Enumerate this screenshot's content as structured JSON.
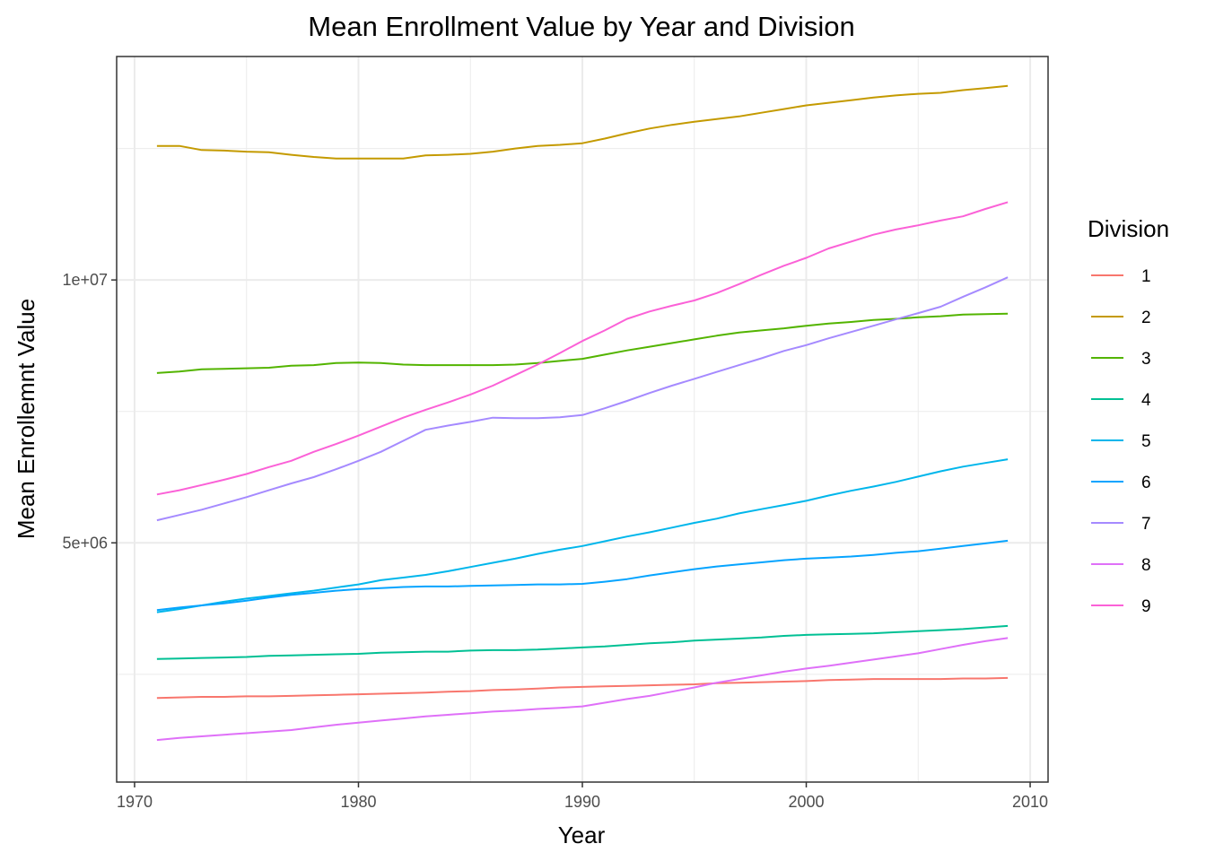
{
  "chart_data": {
    "type": "line",
    "title": "Mean Enrollment Value by Year and Division",
    "xlabel": "Year",
    "ylabel": "Mean Enrollemnt Value",
    "xlim": [
      1969.2,
      2010.8
    ],
    "ylim": [
      450000,
      14250000
    ],
    "x_ticks": [
      1970,
      1980,
      1990,
      2000,
      2010
    ],
    "x_tick_labels": [
      "1970",
      "1980",
      "1990",
      "2000",
      "2010"
    ],
    "y_ticks": [
      5000000,
      10000000
    ],
    "y_tick_labels": [
      "5e+06",
      "1e+07"
    ],
    "y_minor_ticks": [
      2500000,
      7500000,
      12500000
    ],
    "x_minor_ticks": [
      1975,
      1985,
      1995,
      2005
    ],
    "grid": true,
    "legend": {
      "title": "Division",
      "placement": "right"
    },
    "x": [
      1971,
      1972,
      1973,
      1974,
      1975,
      1976,
      1977,
      1978,
      1979,
      1980,
      1981,
      1982,
      1983,
      1984,
      1985,
      1986,
      1987,
      1988,
      1989,
      1990,
      1991,
      1992,
      1993,
      1994,
      1995,
      1996,
      1997,
      1998,
      1999,
      2000,
      2001,
      2002,
      2003,
      2004,
      2005,
      2006,
      2007,
      2008,
      2009
    ],
    "series": [
      {
        "name": "1",
        "color": "#F8766D",
        "values": [
          2050000,
          2060000,
          2070000,
          2070000,
          2080000,
          2080000,
          2090000,
          2100000,
          2110000,
          2120000,
          2130000,
          2140000,
          2150000,
          2170000,
          2180000,
          2200000,
          2210000,
          2230000,
          2250000,
          2260000,
          2270000,
          2280000,
          2290000,
          2300000,
          2310000,
          2330000,
          2340000,
          2350000,
          2360000,
          2370000,
          2390000,
          2400000,
          2410000,
          2410000,
          2410000,
          2410000,
          2420000,
          2420000,
          2430000
        ]
      },
      {
        "name": "2",
        "color": "#C49A00",
        "values": [
          12550000,
          12550000,
          12470000,
          12460000,
          12440000,
          12430000,
          12380000,
          12340000,
          12310000,
          12310000,
          12310000,
          12310000,
          12370000,
          12380000,
          12400000,
          12440000,
          12500000,
          12550000,
          12570000,
          12600000,
          12690000,
          12790000,
          12880000,
          12950000,
          13010000,
          13060000,
          13110000,
          13180000,
          13250000,
          13320000,
          13370000,
          13420000,
          13470000,
          13510000,
          13540000,
          13560000,
          13610000,
          13650000,
          13690000
        ]
      },
      {
        "name": "3",
        "color": "#53B400",
        "values": [
          8230000,
          8260000,
          8300000,
          8310000,
          8320000,
          8330000,
          8370000,
          8380000,
          8420000,
          8430000,
          8420000,
          8390000,
          8380000,
          8380000,
          8380000,
          8380000,
          8390000,
          8420000,
          8460000,
          8500000,
          8580000,
          8660000,
          8730000,
          8800000,
          8870000,
          8940000,
          9000000,
          9040000,
          9080000,
          9130000,
          9170000,
          9200000,
          9240000,
          9260000,
          9290000,
          9310000,
          9340000,
          9350000,
          9360000
        ]
      },
      {
        "name": "4",
        "color": "#00C094",
        "values": [
          2790000,
          2800000,
          2810000,
          2820000,
          2830000,
          2850000,
          2860000,
          2870000,
          2880000,
          2890000,
          2910000,
          2920000,
          2930000,
          2930000,
          2950000,
          2960000,
          2960000,
          2970000,
          2990000,
          3010000,
          3030000,
          3060000,
          3090000,
          3110000,
          3140000,
          3160000,
          3180000,
          3200000,
          3230000,
          3250000,
          3260000,
          3270000,
          3280000,
          3300000,
          3320000,
          3340000,
          3360000,
          3390000,
          3420000
        ]
      },
      {
        "name": "5",
        "color": "#00B6EB",
        "values": [
          3680000,
          3740000,
          3810000,
          3880000,
          3940000,
          3990000,
          4040000,
          4090000,
          4150000,
          4210000,
          4290000,
          4340000,
          4390000,
          4460000,
          4540000,
          4620000,
          4700000,
          4790000,
          4870000,
          4940000,
          5030000,
          5120000,
          5200000,
          5290000,
          5380000,
          5460000,
          5560000,
          5640000,
          5720000,
          5800000,
          5900000,
          5990000,
          6070000,
          6160000,
          6260000,
          6360000,
          6450000,
          6520000,
          6590000
        ]
      },
      {
        "name": "6",
        "color": "#06A4FF",
        "values": [
          3720000,
          3770000,
          3810000,
          3850000,
          3900000,
          3960000,
          4010000,
          4050000,
          4090000,
          4120000,
          4140000,
          4160000,
          4170000,
          4170000,
          4180000,
          4190000,
          4200000,
          4210000,
          4210000,
          4220000,
          4260000,
          4310000,
          4380000,
          4440000,
          4500000,
          4550000,
          4590000,
          4630000,
          4670000,
          4700000,
          4720000,
          4740000,
          4770000,
          4810000,
          4840000,
          4890000,
          4940000,
          4990000,
          5040000
        ]
      },
      {
        "name": "7",
        "color": "#A58AFF",
        "values": [
          5430000,
          5530000,
          5630000,
          5750000,
          5870000,
          6000000,
          6130000,
          6250000,
          6400000,
          6560000,
          6730000,
          6940000,
          7150000,
          7230000,
          7300000,
          7380000,
          7370000,
          7370000,
          7390000,
          7430000,
          7560000,
          7700000,
          7850000,
          7990000,
          8120000,
          8250000,
          8380000,
          8510000,
          8650000,
          8760000,
          8890000,
          9010000,
          9130000,
          9250000,
          9370000,
          9490000,
          9680000,
          9860000,
          10050000
        ]
      },
      {
        "name": "8",
        "color": "#DF70F8",
        "values": [
          1250000,
          1290000,
          1320000,
          1350000,
          1380000,
          1410000,
          1440000,
          1490000,
          1540000,
          1580000,
          1620000,
          1660000,
          1700000,
          1730000,
          1760000,
          1790000,
          1810000,
          1840000,
          1860000,
          1890000,
          1960000,
          2030000,
          2090000,
          2170000,
          2250000,
          2340000,
          2410000,
          2480000,
          2550000,
          2610000,
          2660000,
          2720000,
          2780000,
          2840000,
          2900000,
          2980000,
          3060000,
          3130000,
          3190000
        ]
      },
      {
        "name": "9",
        "color": "#FB61D7",
        "values": [
          5920000,
          6000000,
          6100000,
          6200000,
          6310000,
          6440000,
          6560000,
          6730000,
          6880000,
          7040000,
          7210000,
          7380000,
          7530000,
          7670000,
          7820000,
          7990000,
          8190000,
          8390000,
          8610000,
          8840000,
          9040000,
          9260000,
          9400000,
          9510000,
          9610000,
          9750000,
          9920000,
          10100000,
          10270000,
          10420000,
          10600000,
          10730000,
          10860000,
          10960000,
          11040000,
          11130000,
          11210000,
          11350000,
          11480000
        ]
      }
    ]
  }
}
